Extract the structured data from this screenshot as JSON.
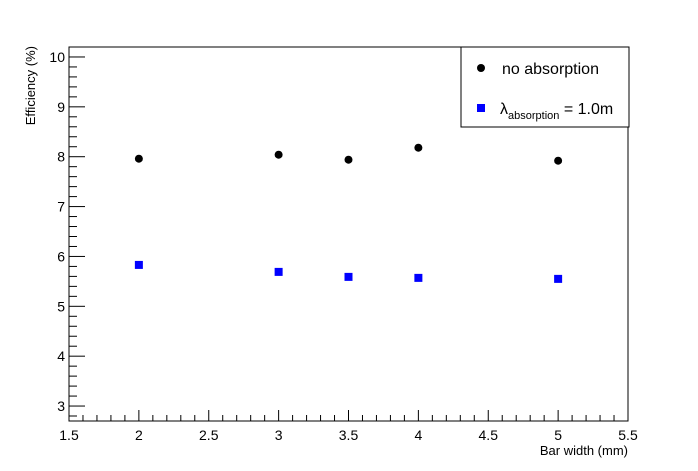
{
  "chart_data": {
    "type": "scatter",
    "title": "",
    "xlabel": "Bar width (mm)",
    "ylabel": "Efficiency (%)",
    "xlim": [
      1.5,
      5.5
    ],
    "ylim": [
      2.7,
      10.2
    ],
    "x_ticks": [
      "1.5",
      "2",
      "2.5",
      "3",
      "3.5",
      "4",
      "4.5",
      "5",
      "5.5"
    ],
    "y_ticks": [
      "3",
      "4",
      "5",
      "6",
      "7",
      "8",
      "9",
      "10"
    ],
    "grid": false,
    "legend_position": "top-right",
    "series": [
      {
        "name": "no absorption",
        "marker": "circle",
        "color": "#000000",
        "x": [
          2,
          3,
          3.5,
          4,
          5
        ],
        "y": [
          7.96,
          8.04,
          7.94,
          8.18,
          7.92
        ]
      },
      {
        "name": "λ",
        "name_subscript": "absorption",
        "name_suffix": " = 1.0m",
        "marker": "square",
        "color": "#0000ff",
        "x": [
          2,
          3,
          3.5,
          4,
          5
        ],
        "y": [
          5.83,
          5.69,
          5.59,
          5.57,
          5.55
        ]
      }
    ]
  }
}
